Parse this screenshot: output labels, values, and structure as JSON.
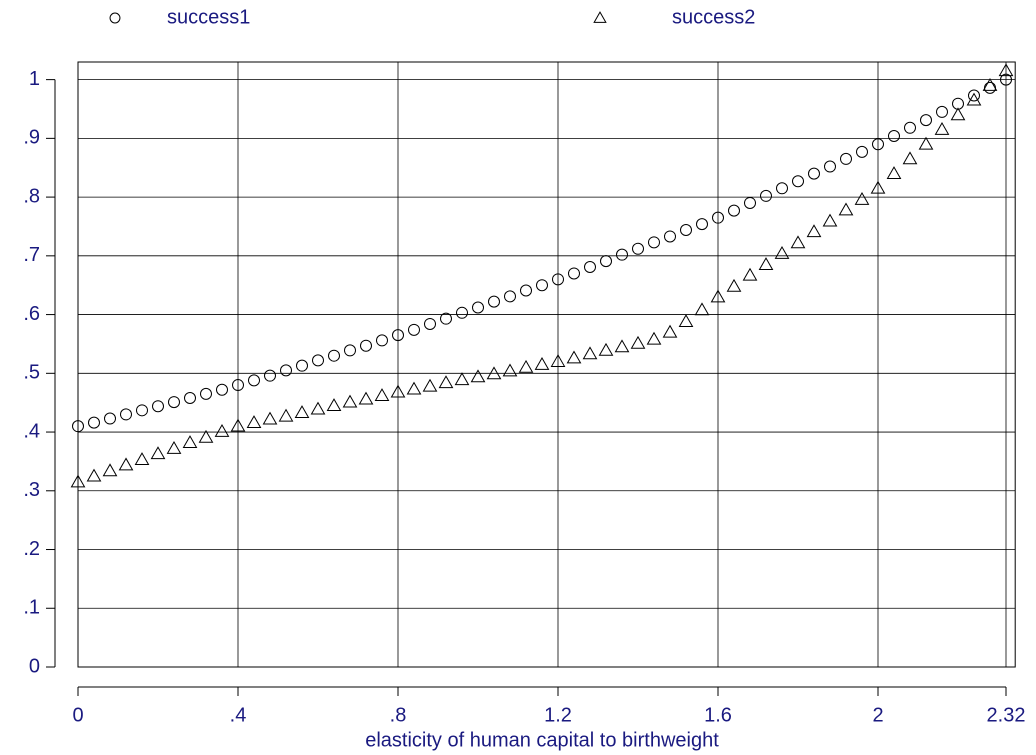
{
  "chart_data": {
    "type": "scatter",
    "xlabel": "elasticity of human capital to birthweight",
    "x": [
      0,
      0.04,
      0.08,
      0.12,
      0.16,
      0.2,
      0.24,
      0.28,
      0.32,
      0.36,
      0.4,
      0.44,
      0.48,
      0.52,
      0.56,
      0.6,
      0.64,
      0.68,
      0.72,
      0.76,
      0.8,
      0.84,
      0.88,
      0.92,
      0.96,
      1.0,
      1.04,
      1.08,
      1.12,
      1.16,
      1.2,
      1.24,
      1.28,
      1.32,
      1.36,
      1.4,
      1.44,
      1.48,
      1.52,
      1.56,
      1.6,
      1.64,
      1.68,
      1.72,
      1.76,
      1.8,
      1.84,
      1.88,
      1.92,
      1.96,
      2.0,
      2.04,
      2.08,
      2.12,
      2.16,
      2.2,
      2.24,
      2.28,
      2.32
    ],
    "series": [
      {
        "name": "success1",
        "marker": "circle",
        "color": "#000000",
        "values": [
          0.41,
          0.416,
          0.423,
          0.43,
          0.437,
          0.444,
          0.451,
          0.458,
          0.465,
          0.472,
          0.48,
          0.488,
          0.496,
          0.505,
          0.513,
          0.522,
          0.53,
          0.539,
          0.547,
          0.556,
          0.565,
          0.574,
          0.584,
          0.593,
          0.603,
          0.612,
          0.622,
          0.631,
          0.641,
          0.65,
          0.66,
          0.67,
          0.681,
          0.691,
          0.702,
          0.712,
          0.723,
          0.733,
          0.744,
          0.754,
          0.765,
          0.777,
          0.79,
          0.802,
          0.815,
          0.827,
          0.84,
          0.852,
          0.865,
          0.877,
          0.89,
          0.904,
          0.918,
          0.931,
          0.945,
          0.959,
          0.973,
          0.986,
          1.0
        ]
      },
      {
        "name": "success2",
        "marker": "triangle",
        "color": "#000000",
        "values": [
          0.315,
          0.325,
          0.334,
          0.344,
          0.353,
          0.363,
          0.372,
          0.382,
          0.391,
          0.401,
          0.41,
          0.416,
          0.422,
          0.427,
          0.433,
          0.439,
          0.445,
          0.451,
          0.456,
          0.462,
          0.468,
          0.473,
          0.478,
          0.484,
          0.489,
          0.494,
          0.499,
          0.504,
          0.51,
          0.515,
          0.52,
          0.526,
          0.533,
          0.539,
          0.545,
          0.551,
          0.558,
          0.57,
          0.588,
          0.608,
          0.63,
          0.648,
          0.667,
          0.685,
          0.704,
          0.722,
          0.741,
          0.759,
          0.778,
          0.796,
          0.815,
          0.84,
          0.865,
          0.89,
          0.915,
          0.94,
          0.965,
          0.99,
          1.015
        ]
      }
    ],
    "xlim": [
      0,
      2.343
    ],
    "ylim": [
      0,
      1.03
    ],
    "xticks": [
      0,
      {
        "value": 0.4,
        "label": ".4"
      },
      {
        "value": 0.8,
        "label": ".8"
      },
      1.2,
      1.6,
      2,
      2.32
    ],
    "yticks": [
      0,
      {
        "value": 0.1,
        "label": ".1"
      },
      {
        "value": 0.2,
        "label": ".2"
      },
      {
        "value": 0.3,
        "label": ".3"
      },
      {
        "value": 0.4,
        "label": ".4"
      },
      {
        "value": 0.5,
        "label": ".5"
      },
      {
        "value": 0.6,
        "label": ".6"
      },
      {
        "value": 0.7,
        "label": ".7"
      },
      {
        "value": 0.8,
        "label": ".8"
      },
      {
        "value": 0.9,
        "label": ".9"
      },
      1
    ],
    "grid": true,
    "legend": "top"
  }
}
